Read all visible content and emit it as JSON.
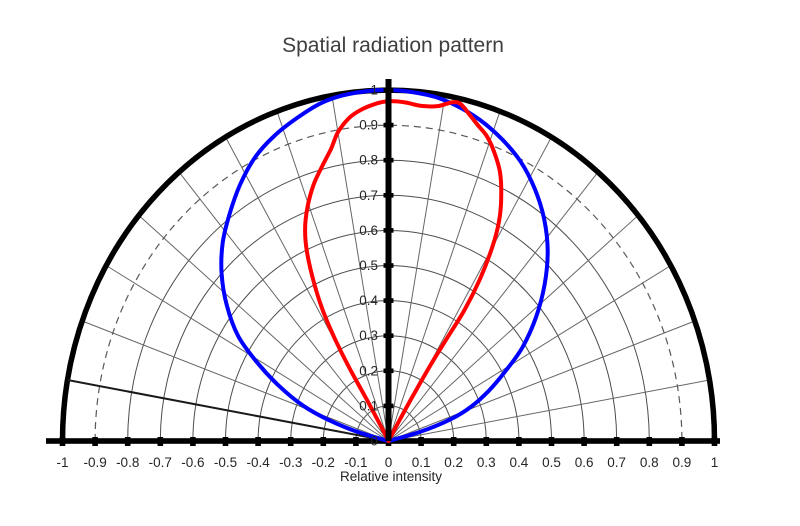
{
  "title": "Spatial radiation pattern",
  "axes": {
    "x_label": "Relative intensity",
    "x_tick_labels": [
      "-1",
      "-0.9",
      "-0.8",
      "-0.7",
      "-0.6",
      "-0.5",
      "-0.4",
      "-0.3",
      "-0.2",
      "-0.1",
      "0",
      "0.1",
      "0.2",
      "0.3",
      "0.4",
      "0.5",
      "0.6",
      "0.7",
      "0.8",
      "0.9",
      "1"
    ],
    "r_tick_labels_top_down": [
      "1",
      "0.9",
      "0.8",
      "0.7",
      "0.6",
      "0.5",
      "0.4",
      "0.3",
      "0.2",
      "0.1",
      "0"
    ]
  },
  "chart_data": {
    "type": "line",
    "subtype": "polar-semicircle",
    "title": "Spatial radiation pattern",
    "xlabel": "Relative intensity",
    "r_range": [
      0,
      1
    ],
    "r_ring_step": 0.1,
    "dashed_ring_r": 0.9,
    "spoke_step_deg": 10,
    "highlight_spoke_theta_deg": -80,
    "theta_convention": "degrees from vertical axis; negative = left, positive = right",
    "grid": true,
    "legend": "none",
    "series": [
      {
        "name": "blue-curve",
        "color": "#0000ff",
        "points_theta_r": [
          [
            -77,
            0
          ],
          [
            -75,
            0.09
          ],
          [
            -72,
            0.19
          ],
          [
            -69,
            0.28
          ],
          [
            -65,
            0.37
          ],
          [
            -61,
            0.46
          ],
          [
            -57,
            0.55
          ],
          [
            -52,
            0.63
          ],
          [
            -47,
            0.7
          ],
          [
            -42,
            0.76
          ],
          [
            -37,
            0.81
          ],
          [
            -32,
            0.86
          ],
          [
            -27,
            0.905
          ],
          [
            -22,
            0.937
          ],
          [
            -17,
            0.962
          ],
          [
            -12,
            0.985
          ],
          [
            -7,
            0.996
          ],
          [
            0,
            1.0
          ],
          [
            7,
            0.993
          ],
          [
            12,
            0.979
          ],
          [
            17,
            0.957
          ],
          [
            22,
            0.928
          ],
          [
            27,
            0.893
          ],
          [
            32,
            0.847
          ],
          [
            37,
            0.793
          ],
          [
            42,
            0.73
          ],
          [
            47,
            0.655
          ],
          [
            52,
            0.575
          ],
          [
            57,
            0.49
          ],
          [
            61,
            0.41
          ],
          [
            65,
            0.34
          ],
          [
            69,
            0.27
          ],
          [
            72,
            0.2
          ],
          [
            75,
            0.1
          ],
          [
            77,
            0
          ]
        ]
      },
      {
        "name": "red-curve",
        "color": "#ff0000",
        "points_theta_r": [
          [
            -28,
            0
          ],
          [
            -29,
            0.06
          ],
          [
            -29.5,
            0.14
          ],
          [
            -30,
            0.24
          ],
          [
            -29.5,
            0.33
          ],
          [
            -28.5,
            0.42
          ],
          [
            -27,
            0.5
          ],
          [
            -25,
            0.59
          ],
          [
            -23,
            0.655
          ],
          [
            -20.5,
            0.71
          ],
          [
            -17.5,
            0.765
          ],
          [
            -14.5,
            0.81
          ],
          [
            -12,
            0.85
          ],
          [
            -10,
            0.893
          ],
          [
            -7.5,
            0.928
          ],
          [
            -5,
            0.948
          ],
          [
            -2,
            0.963
          ],
          [
            0,
            0.968
          ],
          [
            3,
            0.966
          ],
          [
            6,
            0.96
          ],
          [
            9,
            0.966
          ],
          [
            11.5,
            0.985
          ],
          [
            13,
            0.985
          ],
          [
            15,
            0.962
          ],
          [
            17,
            0.94
          ],
          [
            19,
            0.921
          ],
          [
            21,
            0.893
          ],
          [
            24,
            0.84
          ],
          [
            26.5,
            0.775
          ],
          [
            28.5,
            0.71
          ],
          [
            30,
            0.635
          ],
          [
            31.3,
            0.54
          ],
          [
            32,
            0.44
          ],
          [
            31.5,
            0.345
          ],
          [
            30.8,
            0.25
          ],
          [
            30.2,
            0.15
          ],
          [
            29.8,
            0.07
          ],
          [
            29.3,
            0
          ]
        ]
      }
    ]
  },
  "colors": {
    "background": "#ffffff",
    "title_text": "#3f3f3f",
    "tick_text": "#262626",
    "ring_grid": "#4d4d4d",
    "spoke_grid": "#666666",
    "dashed_ring": "#595959",
    "outer_arc": "#000000",
    "axis": "#000000",
    "highlight_spoke": "#1a1a1a",
    "series_blue": "#0000ff",
    "series_red": "#ff0000"
  }
}
